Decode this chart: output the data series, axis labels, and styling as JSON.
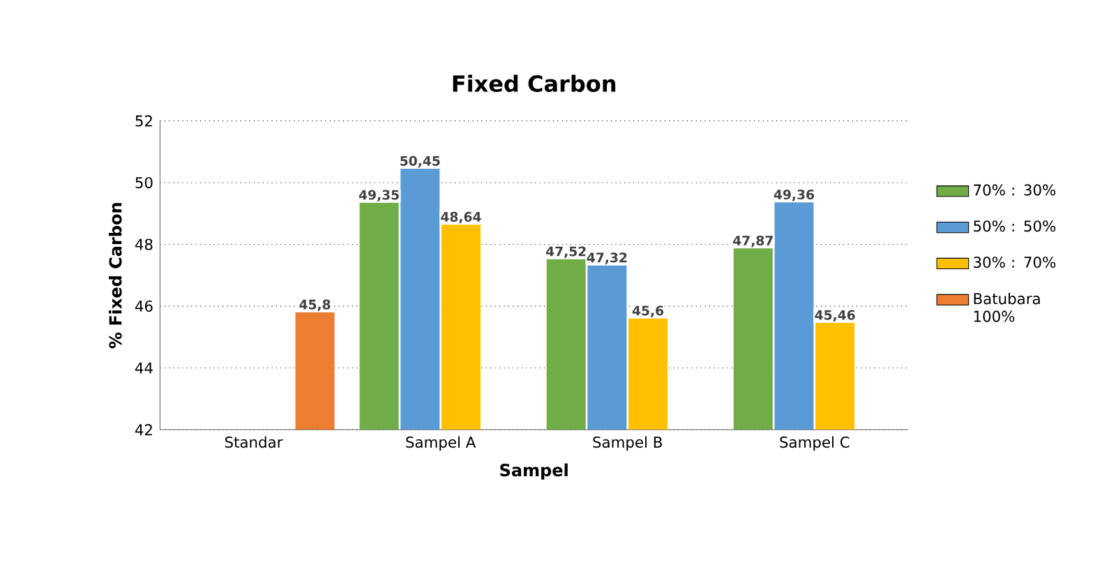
{
  "chart_data": {
    "type": "bar",
    "title": "Fixed Carbon",
    "xlabel": "Sampel",
    "ylabel": "% Fixed Carbon",
    "categories": [
      "Standar",
      "Sampel A",
      "Sampel B",
      "Sampel C"
    ],
    "series": [
      {
        "name": "70% : 30%",
        "color": "#70ad47",
        "values": [
          null,
          49.35,
          47.52,
          47.87
        ],
        "value_labels": [
          null,
          "49,35",
          "47,52",
          "47,87"
        ]
      },
      {
        "name": "50% : 50%",
        "color": "#5b9bd5",
        "values": [
          null,
          50.45,
          47.32,
          49.36
        ],
        "value_labels": [
          null,
          "50,45",
          "47,32",
          "49,36"
        ]
      },
      {
        "name": "30% : 70%",
        "color": "#ffc000",
        "values": [
          null,
          48.64,
          45.6,
          45.46
        ],
        "value_labels": [
          null,
          "48,64",
          "45,6",
          "45,46"
        ]
      },
      {
        "name": "Batubara 100%",
        "color": "#ed7d31",
        "values": [
          45.8,
          null,
          null,
          null
        ],
        "value_labels": [
          "45,8",
          null,
          null,
          null
        ]
      }
    ],
    "ylim": [
      42,
      52
    ],
    "yticks": [
      42,
      44,
      46,
      48,
      50,
      52
    ],
    "grid": "y",
    "legend": "right"
  }
}
